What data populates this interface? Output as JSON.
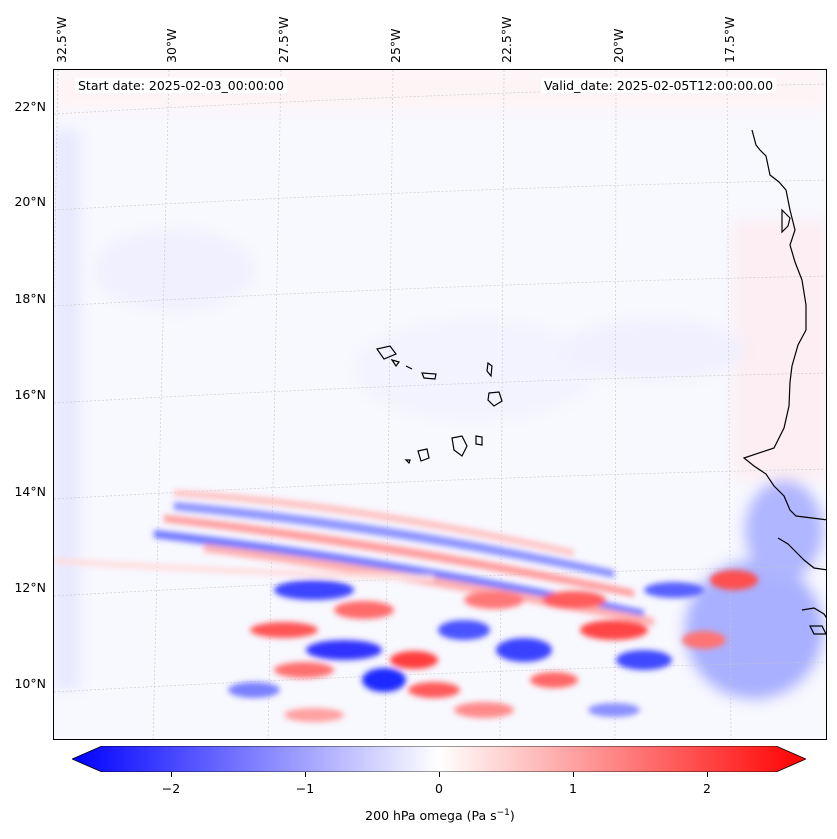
{
  "map": {
    "start_date": "Start date: 2025-02-03_00:00:00",
    "valid_date": "Valid_date: 2025-02-05T12:00:00.00",
    "lon_labels": [
      "32.5°W",
      "30°W",
      "27.5°W",
      "25°W",
      "22.5°W",
      "20°W",
      "17.5°W"
    ],
    "lat_labels": [
      "22°N",
      "20°N",
      "18°N",
      "16°N",
      "14°N",
      "12°N",
      "10°N"
    ],
    "variable": "200 hPa omega",
    "units": "(Pa s",
    "units_exp": "−1",
    "units_close": ")"
  },
  "colorbar": {
    "ticks": [
      "−2",
      "−1",
      "0",
      "1",
      "2"
    ],
    "tick_values": [
      -2,
      -1,
      0,
      1,
      2
    ],
    "range": [
      -2.5,
      2.5
    ],
    "colors": {
      "low": "#0000ff",
      "mid": "#ffffff",
      "high": "#ff0000"
    }
  },
  "coastline_color": "#000000",
  "gridline_color": "#c8c8c8"
}
